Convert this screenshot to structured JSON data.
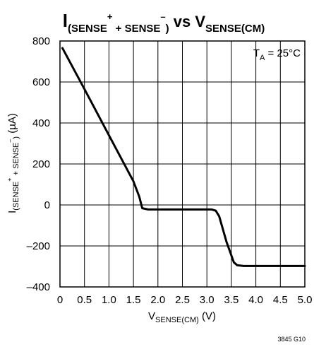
{
  "chart_data": {
    "type": "line",
    "title": {
      "i": "I",
      "sub_open": "(SENSE",
      "plus": "+",
      "sub_mid": " + SENSE",
      "minus": "–",
      "sub_close": ")",
      "vs": " vs V",
      "v_sub": "SENSE(CM)"
    },
    "xlabel": {
      "v": "V",
      "sub": "SENSE(CM)",
      "unit": " (V)"
    },
    "ylabel": {
      "i": "I",
      "sub_open": "(SENSE",
      "plus": "+",
      "sub_mid": " + SENSE",
      "minus": "–",
      "sub_close": ")",
      "unit": " (µA)"
    },
    "annotation": {
      "t": "T",
      "sub": "A",
      "rest": " = 25°C"
    },
    "figure_note": "3845 G10",
    "xlim": [
      0,
      5.0
    ],
    "ylim": [
      -400,
      800
    ],
    "x_ticks": [
      0,
      0.5,
      1.0,
      1.5,
      2.0,
      2.5,
      3.0,
      3.5,
      4.0,
      4.5,
      5.0
    ],
    "x_tick_labels": [
      "0",
      "0.5",
      "1.0",
      "1.5",
      "2.0",
      "2.5",
      "3.0",
      "3.5",
      "4.0",
      "4.5",
      "5.0"
    ],
    "y_ticks": [
      -400,
      -200,
      0,
      200,
      400,
      600,
      800
    ],
    "y_tick_labels": [
      "–400",
      "–200",
      "0",
      "200",
      "400",
      "600",
      "800"
    ],
    "grid": true,
    "series": [
      {
        "x": [
          0.05,
          0.5,
          1.0,
          1.5,
          1.62,
          1.68,
          1.8,
          2.2,
          2.6,
          3.0,
          3.1,
          3.18,
          3.25,
          3.4,
          3.55,
          3.62,
          3.75,
          4.0,
          4.5,
          5.0
        ],
        "y": [
          765,
          565,
          340,
          115,
          40,
          -16,
          -22,
          -22,
          -22,
          -22,
          -22,
          -28,
          -55,
          -180,
          -280,
          -294,
          -298,
          -298,
          -298,
          -298
        ]
      }
    ]
  }
}
